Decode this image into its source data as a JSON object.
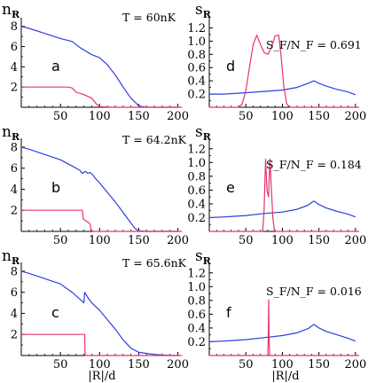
{
  "colors": {
    "blue": "#2b3fe0",
    "red": "#e8336b",
    "axis": "#000000"
  },
  "chart_data": [
    {
      "id": "a",
      "type": "line",
      "letter": "a",
      "ylabel_main": "n",
      "ylabel_sub": "R",
      "annotation": "T = 60nK",
      "xlim": [
        0,
        205
      ],
      "ylim": [
        0,
        8.5
      ],
      "xticks": [
        50,
        100,
        150,
        200
      ],
      "yticks": [
        2,
        4,
        6,
        8
      ],
      "series": [
        {
          "color": "blue",
          "x": [
            0,
            10,
            30,
            50,
            65,
            75,
            90,
            100,
            110,
            120,
            130,
            140,
            150,
            155,
            160,
            170,
            180,
            190,
            200
          ],
          "y": [
            8.0,
            7.8,
            7.3,
            6.8,
            6.5,
            5.9,
            5.2,
            4.9,
            4.2,
            3.2,
            2.0,
            0.9,
            0.15,
            0.05,
            0.02,
            0.0,
            0.0,
            0.0,
            0.0
          ]
        },
        {
          "color": "red",
          "x": [
            0,
            40,
            60,
            65,
            70,
            80,
            90,
            95,
            100,
            120,
            150,
            205
          ],
          "y": [
            2.0,
            2.0,
            2.0,
            1.9,
            1.5,
            1.25,
            0.9,
            0.4,
            0.05,
            0.0,
            0.0,
            0.0
          ]
        }
      ]
    },
    {
      "id": "d",
      "type": "line",
      "letter": "d",
      "ylabel_main": "s",
      "ylabel_sub": "R",
      "annotation": "S_F/N_F = 0.691",
      "xlim": [
        0,
        205
      ],
      "ylim": [
        0,
        1.3
      ],
      "xticks": [
        50,
        100,
        150,
        200
      ],
      "yticks": [
        0.2,
        0.4,
        0.6,
        0.8,
        1.0,
        1.2
      ],
      "series": [
        {
          "color": "blue",
          "x": [
            0,
            20,
            50,
            75,
            100,
            120,
            135,
            143,
            150,
            160,
            175,
            190,
            200
          ],
          "y": [
            0.2,
            0.2,
            0.22,
            0.24,
            0.26,
            0.3,
            0.36,
            0.4,
            0.36,
            0.32,
            0.27,
            0.23,
            0.19
          ]
        },
        {
          "color": "red",
          "x": [
            0,
            40,
            45,
            50,
            55,
            60,
            65,
            70,
            75,
            80,
            85,
            90,
            95,
            98,
            102,
            106,
            110,
            205
          ],
          "y": [
            0.0,
            0.0,
            0.05,
            0.25,
            0.6,
            0.95,
            1.09,
            0.95,
            0.83,
            0.8,
            0.9,
            1.08,
            1.09,
            0.8,
            0.3,
            0.05,
            0.0,
            0.0
          ]
        }
      ]
    },
    {
      "id": "b",
      "type": "line",
      "letter": "b",
      "ylabel_main": "n",
      "ylabel_sub": "R",
      "annotation": "T = 64.2nK",
      "xlim": [
        0,
        205
      ],
      "ylim": [
        0,
        8.5
      ],
      "xticks": [
        50,
        100,
        150,
        200
      ],
      "yticks": [
        2,
        4,
        6,
        8
      ],
      "series": [
        {
          "color": "blue",
          "x": [
            0,
            10,
            30,
            50,
            65,
            75,
            78,
            82,
            85,
            88,
            92,
            95,
            100,
            110,
            120,
            130,
            140,
            145,
            150,
            160,
            170,
            180,
            190,
            200
          ],
          "y": [
            8.0,
            7.8,
            7.3,
            6.8,
            6.2,
            5.8,
            5.5,
            5.7,
            5.5,
            5.6,
            5.3,
            5.0,
            4.6,
            3.7,
            2.8,
            1.8,
            0.8,
            0.3,
            0.05,
            0.0,
            0.0,
            0.0,
            0.0,
            0.0
          ]
        },
        {
          "color": "red",
          "x": [
            0,
            60,
            78,
            79,
            82,
            85,
            88,
            89,
            92,
            205
          ],
          "y": [
            2.0,
            2.0,
            2.0,
            1.2,
            1.0,
            0.9,
            0.7,
            0.1,
            0.0,
            0.0
          ]
        }
      ]
    },
    {
      "id": "e",
      "type": "line",
      "letter": "e",
      "ylabel_main": "s",
      "ylabel_sub": "R",
      "annotation": "S_F/N_F = 0.184",
      "xlim": [
        0,
        205
      ],
      "ylim": [
        0,
        1.3
      ],
      "xticks": [
        50,
        100,
        150,
        200
      ],
      "yticks": [
        0.2,
        0.4,
        0.6,
        0.8,
        1.0,
        1.2
      ],
      "series": [
        {
          "color": "blue",
          "x": [
            0,
            20,
            50,
            75,
            100,
            120,
            135,
            143,
            150,
            160,
            175,
            190,
            200
          ],
          "y": [
            0.2,
            0.21,
            0.23,
            0.26,
            0.28,
            0.32,
            0.38,
            0.44,
            0.39,
            0.34,
            0.29,
            0.25,
            0.21
          ]
        },
        {
          "color": "red",
          "x": [
            0,
            73,
            75,
            77,
            79,
            81,
            83,
            85,
            87,
            89,
            91,
            205
          ],
          "y": [
            0.0,
            0.0,
            0.3,
            1.05,
            0.6,
            0.5,
            1.05,
            0.6,
            0.2,
            0.02,
            0.0,
            0.0
          ]
        }
      ]
    },
    {
      "id": "c",
      "type": "line",
      "letter": "c",
      "ylabel_main": "n",
      "ylabel_sub": "R",
      "annotation": "T = 65.6nK",
      "xlim": [
        0,
        205
      ],
      "ylim": [
        0,
        8.5
      ],
      "xticks": [
        50,
        100,
        150,
        200
      ],
      "yticks": [
        2,
        4,
        6,
        8
      ],
      "series": [
        {
          "color": "blue",
          "x": [
            0,
            10,
            30,
            50,
            65,
            80,
            81,
            85,
            90,
            100,
            110,
            120,
            130,
            140,
            150,
            160,
            170,
            180,
            190,
            200
          ],
          "y": [
            8.0,
            7.8,
            7.3,
            6.8,
            6.0,
            5.0,
            6.0,
            5.5,
            5.0,
            4.3,
            3.4,
            2.5,
            1.5,
            0.7,
            0.3,
            0.2,
            0.1,
            0.05,
            0.0,
            0.0
          ]
        },
        {
          "color": "red",
          "x": [
            0,
            40,
            81,
            81.5,
            205
          ],
          "y": [
            2.0,
            2.0,
            2.0,
            0.0,
            0.0
          ]
        }
      ]
    },
    {
      "id": "f",
      "type": "line",
      "letter": "f",
      "ylabel_main": "s",
      "ylabel_sub": "R",
      "annotation": "S_F/N_F = 0.016",
      "xlim": [
        0,
        205
      ],
      "ylim": [
        0,
        1.3
      ],
      "xticks": [
        50,
        100,
        150,
        200
      ],
      "yticks": [
        0.2,
        0.4,
        0.6,
        0.8,
        1.0,
        1.2
      ],
      "series": [
        {
          "color": "blue",
          "x": [
            0,
            20,
            50,
            75,
            100,
            120,
            135,
            143,
            150,
            160,
            175,
            190,
            200
          ],
          "y": [
            0.2,
            0.21,
            0.23,
            0.26,
            0.29,
            0.33,
            0.39,
            0.45,
            0.4,
            0.35,
            0.3,
            0.25,
            0.21
          ]
        },
        {
          "color": "red",
          "x": [
            0,
            80,
            80.8,
            81.3,
            81.8,
            82.6,
            205
          ],
          "y": [
            0.0,
            0.0,
            0.3,
            0.81,
            0.3,
            0.0,
            0.0
          ]
        }
      ]
    }
  ],
  "xlabel_left": "|R|/d",
  "xlabel_right": "|R|/d"
}
